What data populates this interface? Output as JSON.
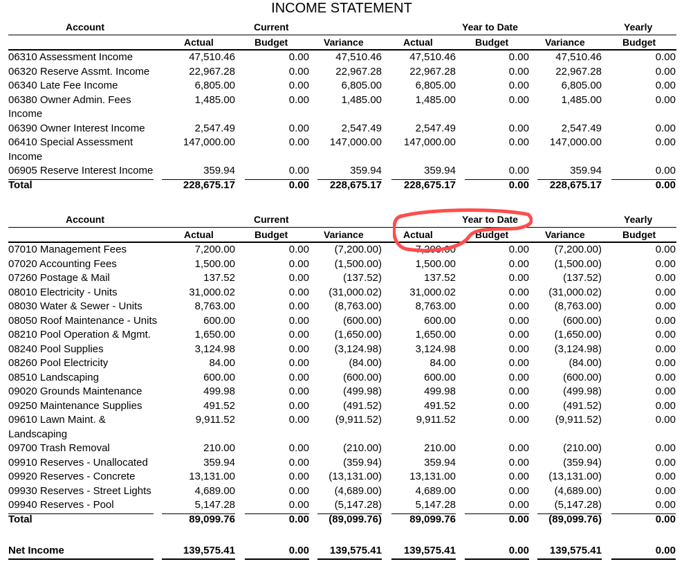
{
  "title": "INCOME STATEMENT",
  "headers": {
    "account": "Account",
    "current": "Current",
    "ytd": "Year to Date",
    "yearly": "Yearly",
    "actual": "Actual",
    "budget": "Budget",
    "variance": "Variance"
  },
  "income": {
    "rows": [
      {
        "account": [
          "06310 Assessment Income"
        ],
        "values": [
          "47,510.46",
          "0.00",
          "47,510.46",
          "47,510.46",
          "0.00",
          "47,510.46",
          "0.00"
        ]
      },
      {
        "account": [
          "06320 Reserve  Assmt. Income"
        ],
        "values": [
          "22,967.28",
          "0.00",
          "22,967.28",
          "22,967.28",
          "0.00",
          "22,967.28",
          "0.00"
        ]
      },
      {
        "account": [
          "06340 Late Fee Income"
        ],
        "values": [
          "6,805.00",
          "0.00",
          "6,805.00",
          "6,805.00",
          "0.00",
          "6,805.00",
          "0.00"
        ]
      },
      {
        "account": [
          "06380 Owner Admin. Fees",
          "Income"
        ],
        "values": [
          "1,485.00",
          "0.00",
          "1,485.00",
          "1,485.00",
          "0.00",
          "1,485.00",
          "0.00"
        ]
      },
      {
        "account": [
          "06390 Owner Interest Income"
        ],
        "values": [
          "2,547.49",
          "0.00",
          "2,547.49",
          "2,547.49",
          "0.00",
          "2,547.49",
          "0.00"
        ]
      },
      {
        "account": [
          "06410 Special Assessment",
          "Income"
        ],
        "values": [
          "147,000.00",
          "0.00",
          "147,000.00",
          "147,000.00",
          "0.00",
          "147,000.00",
          "0.00"
        ]
      },
      {
        "account": [
          "06905 Reserve Interest Income"
        ],
        "values": [
          "359.94",
          "0.00",
          "359.94",
          "359.94",
          "0.00",
          "359.94",
          "0.00"
        ]
      }
    ],
    "total": {
      "label": "Total",
      "values": [
        "228,675.17",
        "0.00",
        "228,675.17",
        "228,675.17",
        "0.00",
        "228,675.17",
        "0.00"
      ]
    }
  },
  "expenses": {
    "rows": [
      {
        "account": [
          "07010 Management Fees"
        ],
        "values": [
          "7,200.00",
          "0.00",
          "(7,200.00)",
          "7,200.00",
          "0.00",
          "(7,200.00)",
          "0.00"
        ]
      },
      {
        "account": [
          "07020 Accounting Fees"
        ],
        "values": [
          "1,500.00",
          "0.00",
          "(1,500.00)",
          "1,500.00",
          "0.00",
          "(1,500.00)",
          "0.00"
        ]
      },
      {
        "account": [
          "07260 Postage & Mail"
        ],
        "values": [
          "137.52",
          "0.00",
          "(137.52)",
          "137.52",
          "0.00",
          "(137.52)",
          "0.00"
        ]
      },
      {
        "account": [
          "08010 Electricity - Units"
        ],
        "values": [
          "31,000.02",
          "0.00",
          "(31,000.02)",
          "31,000.02",
          "0.00",
          "(31,000.02)",
          "0.00"
        ]
      },
      {
        "account": [
          "08030 Water & Sewer - Units"
        ],
        "values": [
          "8,763.00",
          "0.00",
          "(8,763.00)",
          "8,763.00",
          "0.00",
          "(8,763.00)",
          "0.00"
        ]
      },
      {
        "account": [
          "08050 Roof Maintenance - Units"
        ],
        "values": [
          "600.00",
          "0.00",
          "(600.00)",
          "600.00",
          "0.00",
          "(600.00)",
          "0.00"
        ]
      },
      {
        "account": [
          "08210 Pool Operation & Mgmt."
        ],
        "values": [
          "1,650.00",
          "0.00",
          "(1,650.00)",
          "1,650.00",
          "0.00",
          "(1,650.00)",
          "0.00"
        ]
      },
      {
        "account": [
          "08240 Pool Supplies"
        ],
        "values": [
          "3,124.98",
          "0.00",
          "(3,124.98)",
          "3,124.98",
          "0.00",
          "(3,124.98)",
          "0.00"
        ]
      },
      {
        "account": [
          "08260 Pool Electricity"
        ],
        "values": [
          "84.00",
          "0.00",
          "(84.00)",
          "84.00",
          "0.00",
          "(84.00)",
          "0.00"
        ]
      },
      {
        "account": [
          "08510 Landscaping"
        ],
        "values": [
          "600.00",
          "0.00",
          "(600.00)",
          "600.00",
          "0.00",
          "(600.00)",
          "0.00"
        ]
      },
      {
        "account": [
          "09020 Grounds Maintenance"
        ],
        "values": [
          "499.98",
          "0.00",
          "(499.98)",
          "499.98",
          "0.00",
          "(499.98)",
          "0.00"
        ]
      },
      {
        "account": [
          "09250 Maintenance Supplies"
        ],
        "values": [
          "491.52",
          "0.00",
          "(491.52)",
          "491.52",
          "0.00",
          "(491.52)",
          "0.00"
        ]
      },
      {
        "account": [
          "09610 Lawn Maint. &",
          "Landscaping"
        ],
        "values": [
          "9,911.52",
          "0.00",
          "(9,911.52)",
          "9,911.52",
          "0.00",
          "(9,911.52)",
          "0.00"
        ]
      },
      {
        "account": [
          "09700 Trash Removal"
        ],
        "values": [
          "210.00",
          "0.00",
          "(210.00)",
          "210.00",
          "0.00",
          "(210.00)",
          "0.00"
        ]
      },
      {
        "account": [
          "09910 Reserves - Unallocated"
        ],
        "values": [
          "359.94",
          "0.00",
          "(359.94)",
          "359.94",
          "0.00",
          "(359.94)",
          "0.00"
        ]
      },
      {
        "account": [
          "09920 Reserves - Concrete"
        ],
        "values": [
          "13,131.00",
          "0.00",
          "(13,131.00)",
          "13,131.00",
          "0.00",
          "(13,131.00)",
          "0.00"
        ]
      },
      {
        "account": [
          "09930 Reserves - Street Lights"
        ],
        "values": [
          "4,689.00",
          "0.00",
          "(4,689.00)",
          "4,689.00",
          "0.00",
          "(4,689.00)",
          "0.00"
        ]
      },
      {
        "account": [
          "09940 Reserves - Pool"
        ],
        "values": [
          "5,147.28",
          "0.00",
          "(5,147.28)",
          "5,147.28",
          "0.00",
          "(5,147.28)",
          "0.00"
        ]
      }
    ],
    "total": {
      "label": "Total",
      "values": [
        "89,099.76",
        "0.00",
        "(89,099.76)",
        "89,099.76",
        "0.00",
        "(89,099.76)",
        "0.00"
      ]
    }
  },
  "net_income": {
    "label": "Net Income",
    "values": [
      "139,575.41",
      "0.00",
      "139,575.41",
      "139,575.41",
      "0.00",
      "139,575.41",
      "0.00"
    ]
  },
  "annotation_color": "#ff4d4d"
}
